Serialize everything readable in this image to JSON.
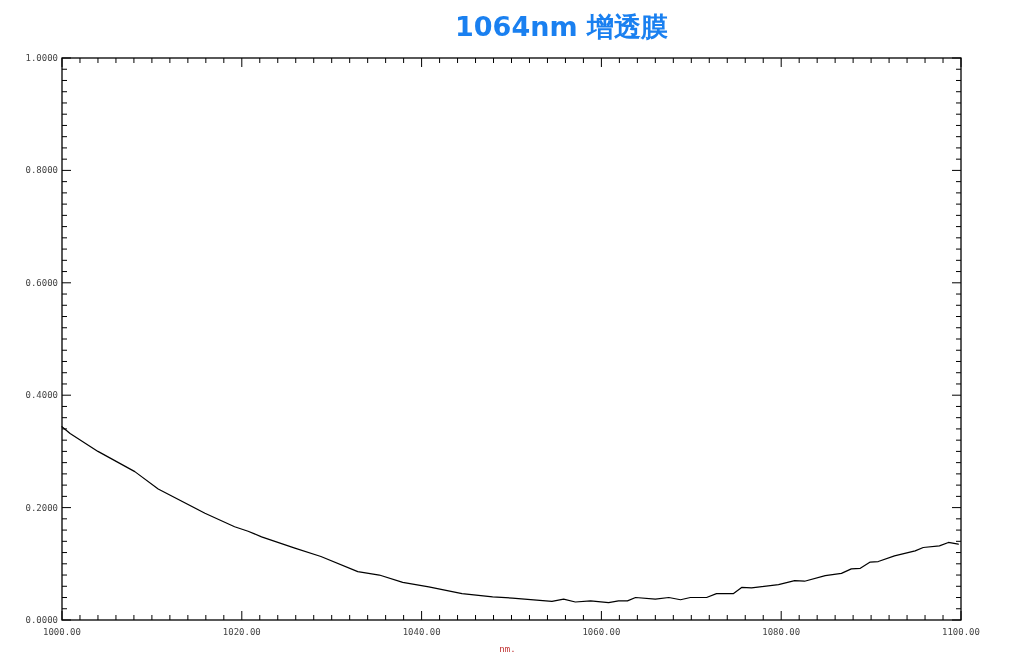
{
  "chart_data": {
    "type": "line",
    "title": "1064nm 增透膜",
    "xlabel": "nm.",
    "x": [
      1000,
      1000.9,
      1004.0,
      1008.1,
      1010.7,
      1015.9,
      1019.2,
      1020.7,
      1022.2,
      1025.9,
      1028.8,
      1032.9,
      1035.3,
      1037.9,
      1040.8,
      1044.5,
      1047.9,
      1050.1,
      1054.5,
      1055.8,
      1057.1,
      1058.8,
      1060.8,
      1061.9,
      1062.9,
      1063.8,
      1066.0,
      1067.5,
      1068.8,
      1069.9,
      1071.7,
      1072.8,
      1074.7,
      1075.6,
      1076.7,
      1079.7,
      1081.5,
      1082.6,
      1084.9,
      1086.7,
      1087.8,
      1088.8,
      1089.9,
      1090.8,
      1092.6,
      1094.9,
      1095.8,
      1097.6,
      1098.6,
      1099.7
    ],
    "series": [
      {
        "color": "#000000",
        "values": [
          0.344,
          0.332,
          0.3,
          0.264,
          0.233,
          0.19,
          0.166,
          0.158,
          0.148,
          0.128,
          0.113,
          0.086,
          0.08,
          0.067,
          0.059,
          0.047,
          0.041,
          0.039,
          0.033,
          0.037,
          0.032,
          0.034,
          0.031,
          0.034,
          0.034,
          0.04,
          0.037,
          0.04,
          0.036,
          0.04,
          0.04,
          0.047,
          0.047,
          0.058,
          0.057,
          0.063,
          0.07,
          0.069,
          0.079,
          0.083,
          0.091,
          0.092,
          0.103,
          0.104,
          0.114,
          0.123,
          0.129,
          0.132,
          0.138,
          0.135
        ]
      }
    ],
    "xlim": [
      1000,
      1100
    ],
    "ylim": [
      0,
      1
    ],
    "xticks": [
      {
        "value": 1000,
        "label": "1000.00"
      },
      {
        "value": 1002,
        "label": null
      },
      {
        "value": 1004,
        "label": null
      },
      {
        "value": 1006,
        "label": null
      },
      {
        "value": 1008,
        "label": null
      },
      {
        "value": 1010,
        "label": null
      },
      {
        "value": 1012,
        "label": null
      },
      {
        "value": 1014,
        "label": null
      },
      {
        "value": 1016,
        "label": null
      },
      {
        "value": 1018,
        "label": null
      },
      {
        "value": 1020,
        "label": "1020.00"
      },
      {
        "value": 1022,
        "label": null
      },
      {
        "value": 1024,
        "label": null
      },
      {
        "value": 1026,
        "label": null
      },
      {
        "value": 1028,
        "label": null
      },
      {
        "value": 1030,
        "label": null
      },
      {
        "value": 1032,
        "label": null
      },
      {
        "value": 1034,
        "label": null
      },
      {
        "value": 1036,
        "label": null
      },
      {
        "value": 1038,
        "label": null
      },
      {
        "value": 1040,
        "label": "1040.00"
      },
      {
        "value": 1042,
        "label": null
      },
      {
        "value": 1044,
        "label": null
      },
      {
        "value": 1046,
        "label": null
      },
      {
        "value": 1048,
        "label": null
      },
      {
        "value": 1050,
        "label": null
      },
      {
        "value": 1052,
        "label": null
      },
      {
        "value": 1054,
        "label": null
      },
      {
        "value": 1056,
        "label": null
      },
      {
        "value": 1058,
        "label": null
      },
      {
        "value": 1060,
        "label": "1060.00"
      },
      {
        "value": 1062,
        "label": null
      },
      {
        "value": 1064,
        "label": null
      },
      {
        "value": 1066,
        "label": null
      },
      {
        "value": 1068,
        "label": null
      },
      {
        "value": 1070,
        "label": null
      },
      {
        "value": 1072,
        "label": null
      },
      {
        "value": 1074,
        "label": null
      },
      {
        "value": 1076,
        "label": null
      },
      {
        "value": 1078,
        "label": null
      },
      {
        "value": 1080,
        "label": "1080.00"
      },
      {
        "value": 1082,
        "label": null
      },
      {
        "value": 1084,
        "label": null
      },
      {
        "value": 1086,
        "label": null
      },
      {
        "value": 1088,
        "label": null
      },
      {
        "value": 1090,
        "label": null
      },
      {
        "value": 1092,
        "label": null
      },
      {
        "value": 1094,
        "label": null
      },
      {
        "value": 1096,
        "label": null
      },
      {
        "value": 1098,
        "label": null
      },
      {
        "value": 1100,
        "label": "1100.00"
      }
    ],
    "yticks": [
      {
        "value": 0,
        "label": "0.0000"
      },
      {
        "value": 0.02,
        "label": null
      },
      {
        "value": 0.04,
        "label": null
      },
      {
        "value": 0.06,
        "label": null
      },
      {
        "value": 0.08,
        "label": null
      },
      {
        "value": 0.1,
        "label": null
      },
      {
        "value": 0.12,
        "label": null
      },
      {
        "value": 0.14,
        "label": null
      },
      {
        "value": 0.16,
        "label": null
      },
      {
        "value": 0.18,
        "label": null
      },
      {
        "value": 0.2,
        "label": "0.2000"
      },
      {
        "value": 0.22,
        "label": null
      },
      {
        "value": 0.24,
        "label": null
      },
      {
        "value": 0.26,
        "label": null
      },
      {
        "value": 0.28,
        "label": null
      },
      {
        "value": 0.3,
        "label": null
      },
      {
        "value": 0.32,
        "label": null
      },
      {
        "value": 0.34,
        "label": null
      },
      {
        "value": 0.36,
        "label": null
      },
      {
        "value": 0.38,
        "label": null
      },
      {
        "value": 0.4,
        "label": "0.4000"
      },
      {
        "value": 0.42,
        "label": null
      },
      {
        "value": 0.44,
        "label": null
      },
      {
        "value": 0.46,
        "label": null
      },
      {
        "value": 0.48,
        "label": null
      },
      {
        "value": 0.5,
        "label": null
      },
      {
        "value": 0.52,
        "label": null
      },
      {
        "value": 0.54,
        "label": null
      },
      {
        "value": 0.56,
        "label": null
      },
      {
        "value": 0.58,
        "label": null
      },
      {
        "value": 0.6,
        "label": "0.6000"
      },
      {
        "value": 0.62,
        "label": null
      },
      {
        "value": 0.64,
        "label": null
      },
      {
        "value": 0.66,
        "label": null
      },
      {
        "value": 0.68,
        "label": null
      },
      {
        "value": 0.7,
        "label": null
      },
      {
        "value": 0.72,
        "label": null
      },
      {
        "value": 0.74,
        "label": null
      },
      {
        "value": 0.76,
        "label": null
      },
      {
        "value": 0.78,
        "label": null
      },
      {
        "value": 0.8,
        "label": "0.8000"
      },
      {
        "value": 0.82,
        "label": null
      },
      {
        "value": 0.84,
        "label": null
      },
      {
        "value": 0.86,
        "label": null
      },
      {
        "value": 0.88,
        "label": null
      },
      {
        "value": 0.9,
        "label": null
      },
      {
        "value": 0.92,
        "label": null
      },
      {
        "value": 0.94,
        "label": null
      },
      {
        "value": 0.96,
        "label": null
      },
      {
        "value": 0.98,
        "label": null
      },
      {
        "value": 1,
        "label": "1.0000"
      }
    ]
  }
}
